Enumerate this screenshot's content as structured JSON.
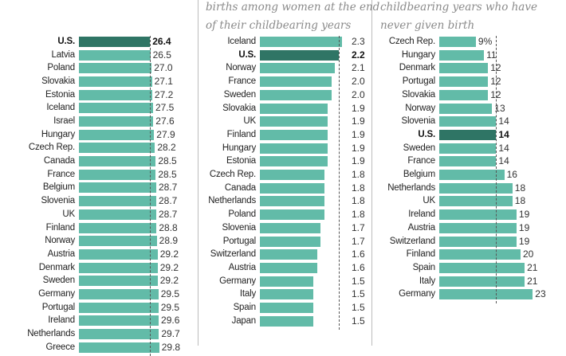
{
  "colors": {
    "bar": "#62bba8",
    "highlight": "#2f7565"
  },
  "chart_data": [
    {
      "type": "bar",
      "orientation": "horizontal",
      "title": "",
      "highlight": "U.S.",
      "categories": [
        "U.S.",
        "Latvia",
        "Poland",
        "Slovakia",
        "Estonia",
        "Iceland",
        "Israel",
        "Hungary",
        "Czech Rep.",
        "Canada",
        "France",
        "Belgium",
        "Slovenia",
        "UK",
        "Finland",
        "Norway",
        "Austria",
        "Denmark",
        "Sweden",
        "Germany",
        "Portugal",
        "Ireland",
        "Netherlands",
        "Greece"
      ],
      "values": [
        26.4,
        26.5,
        27.0,
        27.1,
        27.2,
        27.5,
        27.6,
        27.9,
        28.2,
        28.5,
        28.5,
        28.7,
        28.7,
        28.7,
        28.8,
        28.9,
        29.2,
        29.2,
        29.2,
        29.5,
        29.5,
        29.6,
        29.7,
        29.8
      ],
      "labels": [
        "26.4",
        "26.5",
        "27.0",
        "27.1",
        "27.2",
        "27.5",
        "27.6",
        "27.9",
        "28.2",
        "28.5",
        "28.5",
        "28.7",
        "28.7",
        "28.7",
        "28.8",
        "28.9",
        "29.2",
        "29.2",
        "29.2",
        "29.5",
        "29.5",
        "29.6",
        "29.7",
        "29.8"
      ]
    },
    {
      "type": "bar",
      "orientation": "horizontal",
      "title_lines": [
        "births among women at the end",
        "of their childbearing years"
      ],
      "highlight": "U.S.",
      "categories": [
        "Iceland",
        "U.S.",
        "Norway",
        "France",
        "Sweden",
        "Slovakia",
        "UK",
        "Finland",
        "Hungary",
        "Estonia",
        "Czech Rep.",
        "Canada",
        "Netherlands",
        "Poland",
        "Slovenia",
        "Portugal",
        "Switzerland",
        "Austria",
        "Germany",
        "Italy",
        "Spain",
        "Japan"
      ],
      "values": [
        2.3,
        2.2,
        2.1,
        2.0,
        2.0,
        1.9,
        1.9,
        1.9,
        1.9,
        1.9,
        1.8,
        1.8,
        1.8,
        1.8,
        1.7,
        1.7,
        1.6,
        1.6,
        1.5,
        1.5,
        1.5,
        1.5
      ],
      "labels": [
        "2.3",
        "2.2",
        "2.1",
        "2.0",
        "2.0",
        "1.9",
        "1.9",
        "1.9",
        "1.9",
        "1.9",
        "1.8",
        "1.8",
        "1.8",
        "1.8",
        "1.7",
        "1.7",
        "1.6",
        "1.6",
        "1.5",
        "1.5",
        "1.5",
        "1.5"
      ]
    },
    {
      "type": "bar",
      "orientation": "horizontal",
      "title_lines": [
        "childbearing years who have",
        "never given birth"
      ],
      "highlight": "U.S.",
      "categories": [
        "Czech Rep.",
        "Hungary",
        "Denmark",
        "Portugal",
        "Slovakia",
        "Norway",
        "Slovenia",
        "U.S.",
        "Sweden",
        "France",
        "Belgium",
        "Netherlands",
        "UK",
        "Ireland",
        "Austria",
        "Switzerland",
        "Finland",
        "Spain",
        "Italy",
        "Germany"
      ],
      "values": [
        9,
        11,
        12,
        12,
        12,
        13,
        14,
        14,
        14,
        14,
        16,
        18,
        18,
        19,
        19,
        19,
        20,
        21,
        21,
        23
      ],
      "labels": [
        "9%",
        "11",
        "12",
        "12",
        "12",
        "13",
        "14",
        "14",
        "14",
        "14",
        "16",
        "18",
        "18",
        "19",
        "19",
        "19",
        "20",
        "21",
        "21",
        "23"
      ]
    }
  ]
}
